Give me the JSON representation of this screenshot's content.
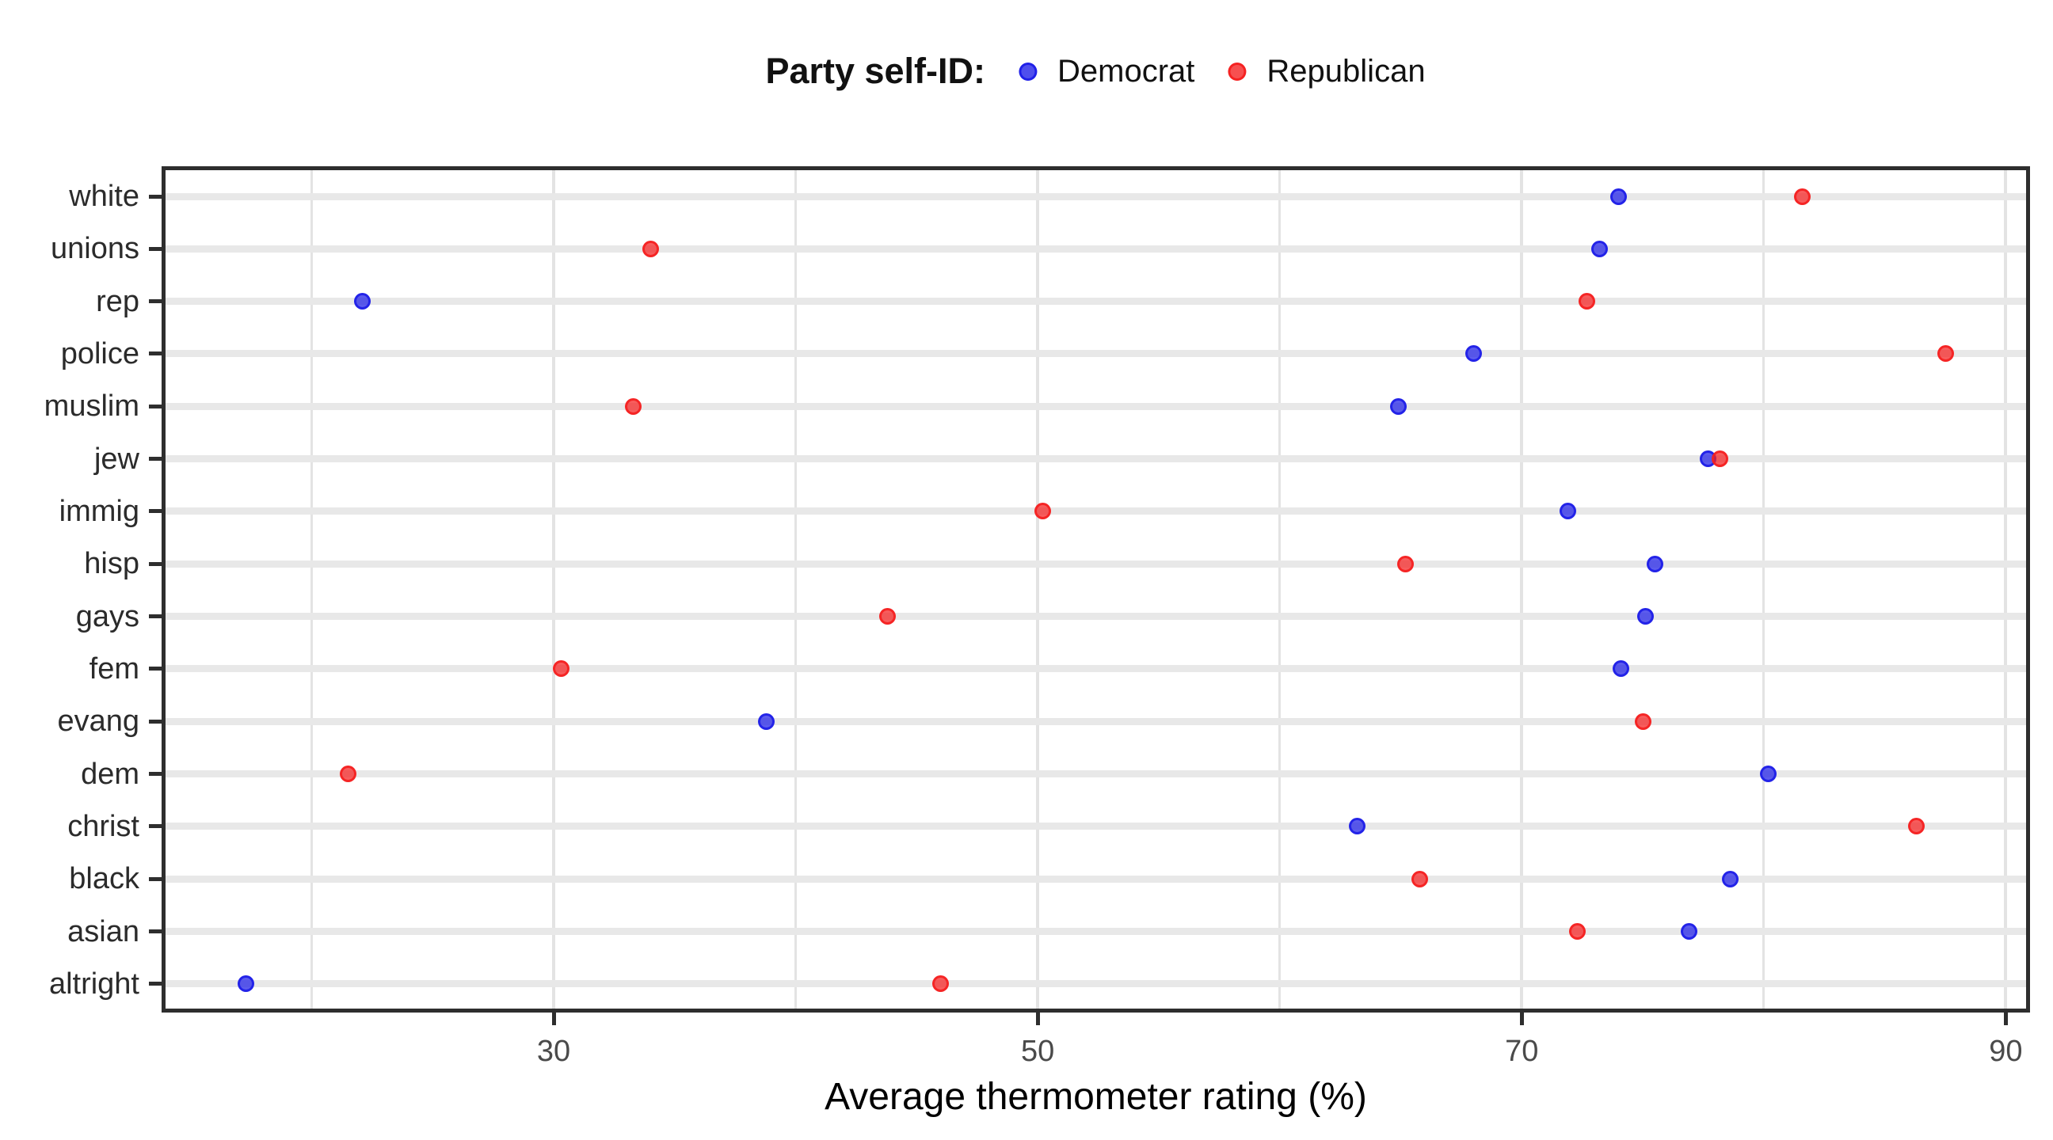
{
  "legend": {
    "title": "Party self-ID:",
    "items": [
      {
        "label": "Democrat",
        "color": "#1d1de8"
      },
      {
        "label": "Republican",
        "color": "#f51f1f"
      }
    ]
  },
  "chart_data": {
    "type": "scatter",
    "subtype": "horizontal-dot-plot",
    "title": "",
    "xlabel": "Average thermometer rating (%)",
    "ylabel": "",
    "categories": [
      "white",
      "unions",
      "rep",
      "police",
      "muslim",
      "jew",
      "immig",
      "hisp",
      "gays",
      "fem",
      "evang",
      "dem",
      "christ",
      "black",
      "asian",
      "altright"
    ],
    "series": [
      {
        "name": "Democrat",
        "color": "#1d1de8",
        "values": [
          74.0,
          73.2,
          22.1,
          68.0,
          64.9,
          77.7,
          71.9,
          75.5,
          75.1,
          74.1,
          38.8,
          80.2,
          63.2,
          78.6,
          76.9,
          17.3
        ]
      },
      {
        "name": "Republican",
        "color": "#f51f1f",
        "values": [
          81.6,
          34.0,
          72.7,
          87.5,
          33.3,
          78.2,
          50.2,
          65.2,
          43.8,
          30.3,
          75.0,
          21.5,
          86.3,
          65.8,
          72.3,
          46.0
        ]
      }
    ],
    "x_major_ticks": [
      30,
      50,
      70,
      90
    ],
    "x_minor_gridlines": [
      20,
      40,
      60,
      80
    ],
    "x_tick_labels": [
      "30",
      "50",
      "70",
      "90"
    ],
    "xlim": [
      13.8,
      91.0
    ],
    "grid": true,
    "legend_position": "top-center",
    "colors": {
      "gridline": "#e3e3e3",
      "row_band": "#e8e8e8",
      "panel_border": "#2e2e2e",
      "tick_label": "#4a4a4a",
      "category_label": "#2b2b2b"
    }
  }
}
